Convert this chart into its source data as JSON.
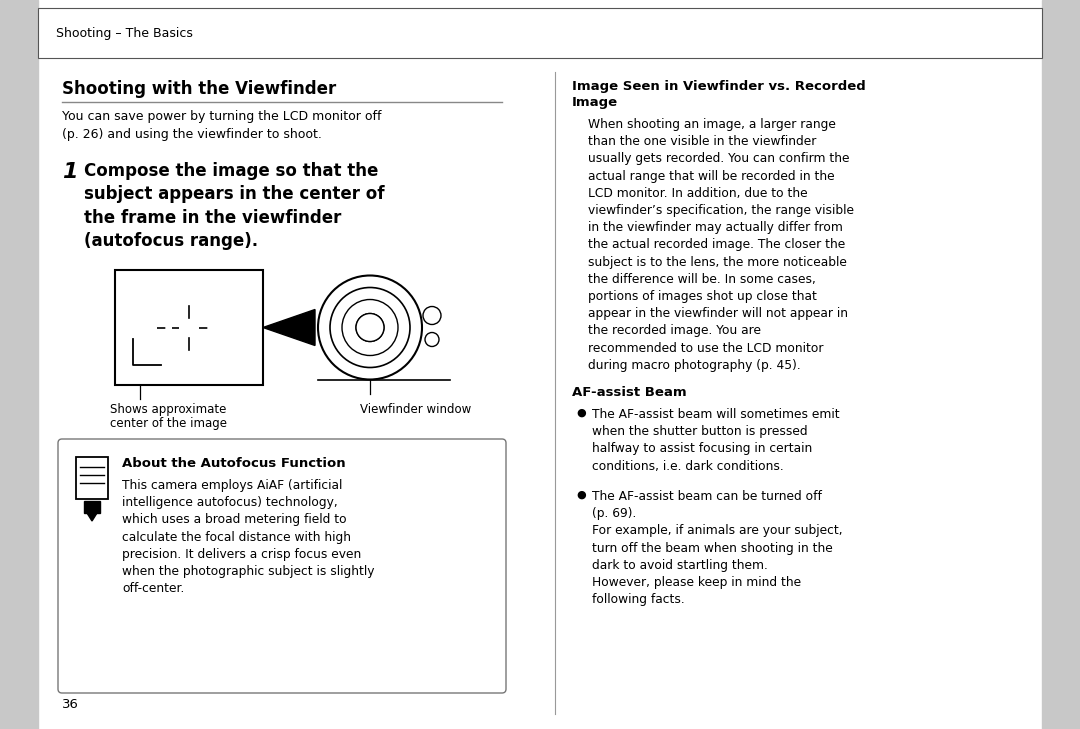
{
  "bg_color": "#ffffff",
  "sidebar_color": "#c8c8c8",
  "header_text": "Shooting – The Basics",
  "section_title_left": "Shooting with the Viewfinder",
  "section_title_right_line1": "Image Seen in Viewfinder vs. Recorded",
  "section_title_right_line2": "Image",
  "intro_text": "You can save power by turning the LCD monitor off\n(p. 26) and using the viewfinder to shoot.",
  "step_number": "1",
  "step_text": "Compose the image so that the\nsubject appears in the center of\nthe frame in the viewfinder\n(autofocus range).",
  "caption_left_line1": "Shows approximate",
  "caption_left_line2": "center of the image",
  "caption_right": "Viewfinder window",
  "note_title": "About the Autofocus Function",
  "note_text": "This camera employs AiAF (artificial\nintelligence autofocus) technology,\nwhich uses a broad metering field to\ncalculate the focal distance with high\nprecision. It delivers a crisp focus even\nwhen the photographic subject is slightly\noff-center.",
  "right_body_text": "    When shooting an image, a larger range\nthan the one visible in the viewfinder\nusually gets recorded. You can confirm the\nactual range that will be recorded in the\nLCD monitor. In addition, due to the\nviewfinder’s specification, the range visible\nin the viewfinder may actually differ from\nthe actual recorded image. The closer the\nsubject is to the lens, the more noticeable\nthe difference will be. In some cases,\nportions of images shot up close that\nappear in the viewfinder will not appear in\nthe recorded image. You are\nrecommended to use the LCD monitor\nduring macro photography (p. 45).",
  "af_beam_title": "AF-assist Beam",
  "af_bullet1": "The AF-assist beam will sometimes emit\nwhen the shutter button is pressed\nhalfway to assist focusing in certain\nconditions, i.e. dark conditions.",
  "af_bullet2": "The AF-assist beam can be turned off\n(p. 69).\nFor example, if animals are your subject,\nturn off the beam when shooting in the\ndark to avoid startling them.\nHowever, please keep in mind the\nfollowing facts.",
  "page_number": "36"
}
